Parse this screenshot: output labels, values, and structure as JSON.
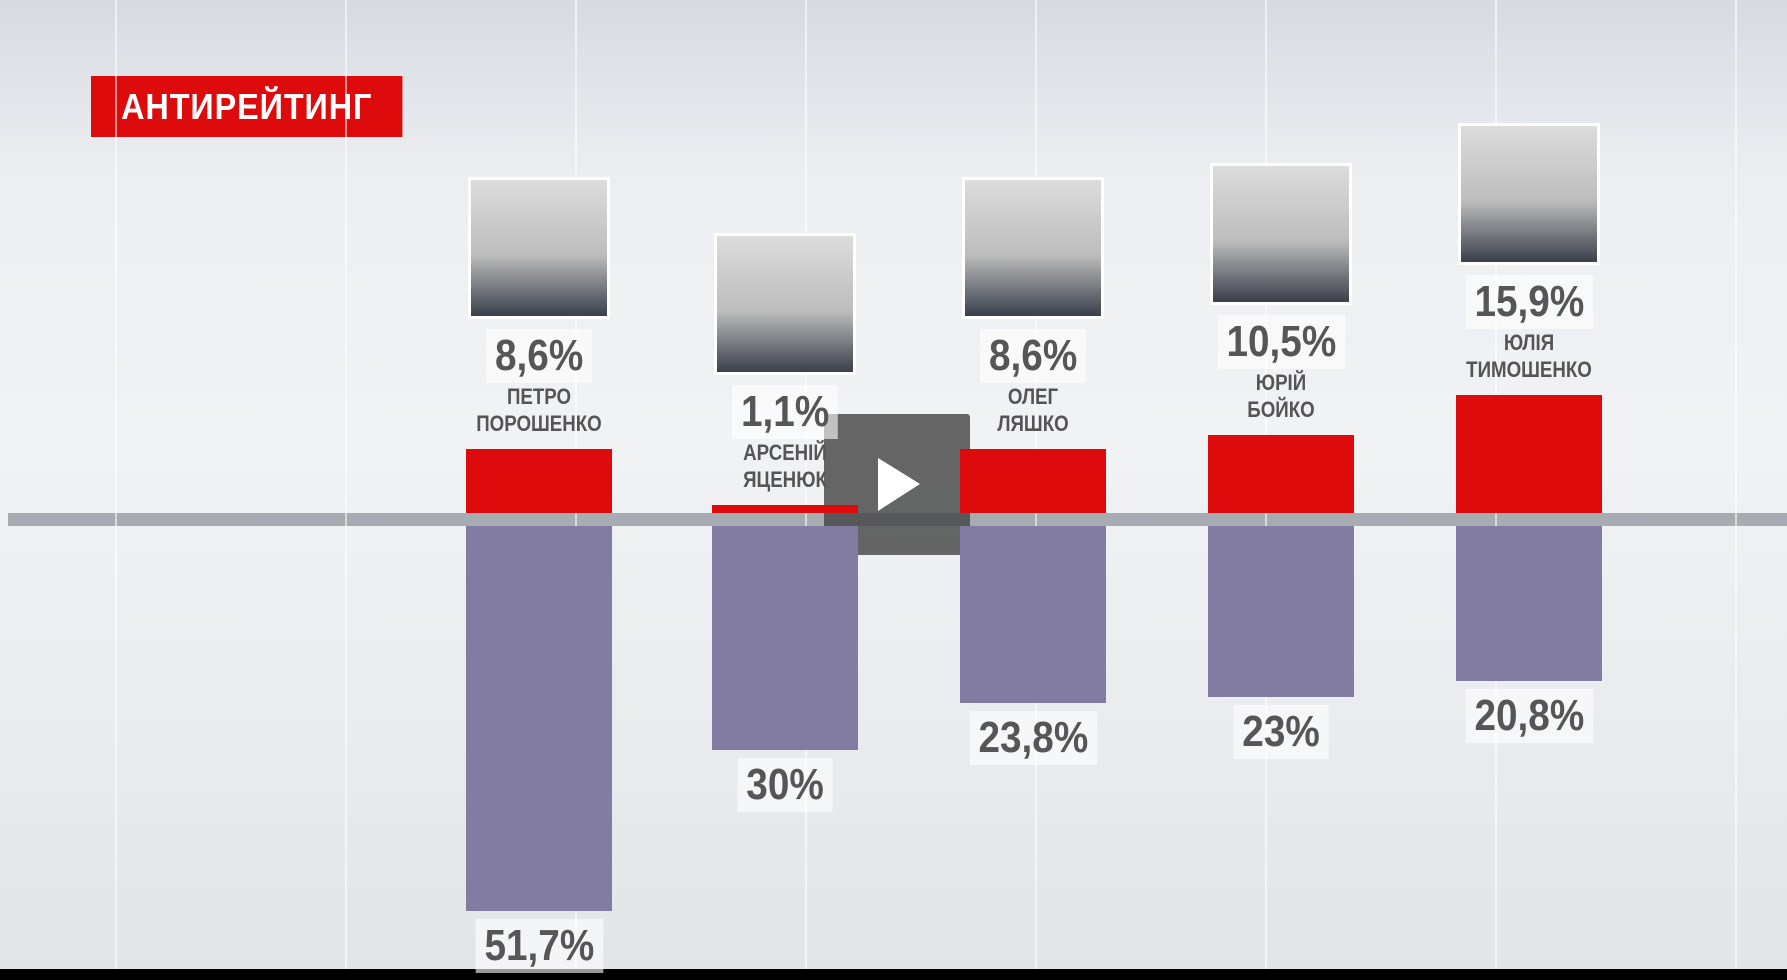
{
  "chart_data": {
    "type": "diverging-bar",
    "title": "АНТИРЕЙТИНГ",
    "categories": [
      "ПЕТРО ПОРОШЕНКО",
      "АРСЕНІЙ ЯЦЕНЮК",
      "ОЛЕГ ЛЯШКО",
      "ЮРІЙ БОЙКО",
      "ЮЛІЯ ТИМОШЕНКО"
    ],
    "series": [
      {
        "color": "#dd0b0b",
        "values": [
          8.6,
          1.1,
          8.6,
          10.5,
          15.9
        ],
        "value_labels": [
          "8,6%",
          "1,1%",
          "8,6%",
          "10,5%",
          "15,9%"
        ]
      },
      {
        "color": "#827ca3",
        "values": [
          51.7,
          30,
          23.8,
          23,
          20.8
        ],
        "value_labels": [
          "51,7%",
          "30%",
          "23,8%",
          "23%",
          "20,8%"
        ]
      }
    ]
  }
}
